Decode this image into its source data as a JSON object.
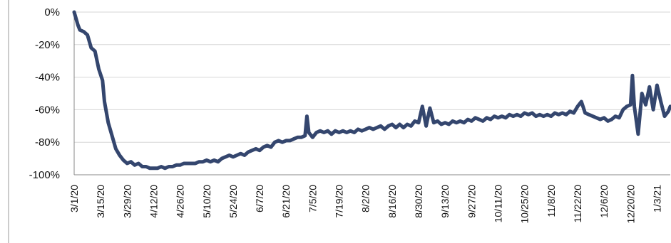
{
  "chart_data": {
    "type": "line",
    "title": "",
    "xlabel": "",
    "ylabel": "",
    "ylim": [
      -100,
      0
    ],
    "y_tick_values": [
      0,
      -20,
      -40,
      -60,
      -80,
      -100
    ],
    "y_tick_labels": [
      "0%",
      "-20%",
      "-40%",
      "-60%",
      "-80%",
      "-100%"
    ],
    "x_tick_labels": [
      "3/1/20",
      "3/15/20",
      "3/29/20",
      "4/12/20",
      "4/26/20",
      "5/10/20",
      "5/24/20",
      "6/7/20",
      "6/21/20",
      "7/5/20",
      "7/19/20",
      "8/2/20",
      "8/16/20",
      "8/30/20",
      "9/13/20",
      "9/27/20",
      "10/11/20",
      "10/25/20",
      "11/8/20",
      "11/22/20",
      "12/6/20",
      "12/20/20",
      "1/3/21"
    ],
    "x_start": "3/1/20",
    "x_end": "1/10/21",
    "grid": "horizontal",
    "legend": "none",
    "line_color": "#34466e",
    "series": [
      {
        "points": [
          [
            "3/1/20",
            0
          ],
          [
            "3/3/20",
            -8
          ],
          [
            "3/4/20",
            -11
          ],
          [
            "3/6/20",
            -12
          ],
          [
            "3/8/20",
            -14
          ],
          [
            "3/10/20",
            -22
          ],
          [
            "3/12/20",
            -24
          ],
          [
            "3/14/20",
            -35
          ],
          [
            "3/16/20",
            -42
          ],
          [
            "3/17/20",
            -55
          ],
          [
            "3/19/20",
            -68
          ],
          [
            "3/21/20",
            -76
          ],
          [
            "3/23/20",
            -84
          ],
          [
            "3/25/20",
            -88
          ],
          [
            "3/27/20",
            -91
          ],
          [
            "3/29/20",
            -93
          ],
          [
            "3/31/20",
            -92
          ],
          [
            "4/2/20",
            -94
          ],
          [
            "4/4/20",
            -93
          ],
          [
            "4/6/20",
            -95
          ],
          [
            "4/8/20",
            -95
          ],
          [
            "4/10/20",
            -96
          ],
          [
            "4/12/20",
            -96
          ],
          [
            "4/14/20",
            -96
          ],
          [
            "4/16/20",
            -95
          ],
          [
            "4/18/20",
            -96
          ],
          [
            "4/20/20",
            -95
          ],
          [
            "4/22/20",
            -95
          ],
          [
            "4/24/20",
            -94
          ],
          [
            "4/26/20",
            -94
          ],
          [
            "4/28/20",
            -93
          ],
          [
            "4/30/20",
            -93
          ],
          [
            "5/2/20",
            -93
          ],
          [
            "5/4/20",
            -93
          ],
          [
            "5/6/20",
            -92
          ],
          [
            "5/8/20",
            -92
          ],
          [
            "5/10/20",
            -91
          ],
          [
            "5/12/20",
            -92
          ],
          [
            "5/14/20",
            -91
          ],
          [
            "5/16/20",
            -92
          ],
          [
            "5/18/20",
            -90
          ],
          [
            "5/20/20",
            -89
          ],
          [
            "5/22/20",
            -88
          ],
          [
            "5/24/20",
            -89
          ],
          [
            "5/26/20",
            -88
          ],
          [
            "5/28/20",
            -87
          ],
          [
            "5/30/20",
            -88
          ],
          [
            "6/1/20",
            -86
          ],
          [
            "6/3/20",
            -85
          ],
          [
            "6/5/20",
            -84
          ],
          [
            "6/7/20",
            -85
          ],
          [
            "6/9/20",
            -83
          ],
          [
            "6/11/20",
            -82
          ],
          [
            "6/13/20",
            -83
          ],
          [
            "6/15/20",
            -80
          ],
          [
            "6/17/20",
            -79
          ],
          [
            "6/19/20",
            -80
          ],
          [
            "6/21/20",
            -79
          ],
          [
            "6/23/20",
            -79
          ],
          [
            "6/25/20",
            -78
          ],
          [
            "6/27/20",
            -77
          ],
          [
            "6/29/20",
            -77
          ],
          [
            "7/1/20",
            -76
          ],
          [
            "7/2/20",
            -64
          ],
          [
            "7/3/20",
            -74
          ],
          [
            "7/5/20",
            -77
          ],
          [
            "7/7/20",
            -74
          ],
          [
            "7/9/20",
            -73
          ],
          [
            "7/11/20",
            -74
          ],
          [
            "7/13/20",
            -73
          ],
          [
            "7/15/20",
            -75
          ],
          [
            "7/17/20",
            -73
          ],
          [
            "7/19/20",
            -74
          ],
          [
            "7/21/20",
            -73
          ],
          [
            "7/23/20",
            -74
          ],
          [
            "7/25/20",
            -73
          ],
          [
            "7/27/20",
            -74
          ],
          [
            "7/29/20",
            -72
          ],
          [
            "7/31/20",
            -73
          ],
          [
            "8/2/20",
            -72
          ],
          [
            "8/4/20",
            -71
          ],
          [
            "8/6/20",
            -72
          ],
          [
            "8/8/20",
            -71
          ],
          [
            "8/10/20",
            -70
          ],
          [
            "8/12/20",
            -72
          ],
          [
            "8/14/20",
            -70
          ],
          [
            "8/16/20",
            -69
          ],
          [
            "8/18/20",
            -71
          ],
          [
            "8/20/20",
            -69
          ],
          [
            "8/22/20",
            -71
          ],
          [
            "8/24/20",
            -69
          ],
          [
            "8/26/20",
            -70
          ],
          [
            "8/28/20",
            -67
          ],
          [
            "8/30/20",
            -68
          ],
          [
            "9/1/20",
            -58
          ],
          [
            "9/3/20",
            -70
          ],
          [
            "9/5/20",
            -59
          ],
          [
            "9/7/20",
            -68
          ],
          [
            "9/9/20",
            -67
          ],
          [
            "9/11/20",
            -69
          ],
          [
            "9/13/20",
            -68
          ],
          [
            "9/15/20",
            -69
          ],
          [
            "9/17/20",
            -67
          ],
          [
            "9/19/20",
            -68
          ],
          [
            "9/21/20",
            -67
          ],
          [
            "9/23/20",
            -68
          ],
          [
            "9/25/20",
            -66
          ],
          [
            "9/27/20",
            -67
          ],
          [
            "9/29/20",
            -65
          ],
          [
            "10/1/20",
            -66
          ],
          [
            "10/3/20",
            -67
          ],
          [
            "10/5/20",
            -65
          ],
          [
            "10/7/20",
            -66
          ],
          [
            "10/9/20",
            -64
          ],
          [
            "10/11/20",
            -65
          ],
          [
            "10/13/20",
            -64
          ],
          [
            "10/15/20",
            -65
          ],
          [
            "10/17/20",
            -63
          ],
          [
            "10/19/20",
            -64
          ],
          [
            "10/21/20",
            -63
          ],
          [
            "10/23/20",
            -64
          ],
          [
            "10/25/20",
            -62
          ],
          [
            "10/27/20",
            -63
          ],
          [
            "10/29/20",
            -62
          ],
          [
            "10/31/20",
            -64
          ],
          [
            "11/2/20",
            -63
          ],
          [
            "11/4/20",
            -64
          ],
          [
            "11/6/20",
            -63
          ],
          [
            "11/8/20",
            -64
          ],
          [
            "11/10/20",
            -62
          ],
          [
            "11/12/20",
            -63
          ],
          [
            "11/14/20",
            -62
          ],
          [
            "11/16/20",
            -63
          ],
          [
            "11/18/20",
            -61
          ],
          [
            "11/20/20",
            -62
          ],
          [
            "11/22/20",
            -58
          ],
          [
            "11/24/20",
            -55
          ],
          [
            "11/26/20",
            -62
          ],
          [
            "11/28/20",
            -63
          ],
          [
            "11/30/20",
            -64
          ],
          [
            "12/2/20",
            -65
          ],
          [
            "12/4/20",
            -66
          ],
          [
            "12/6/20",
            -65
          ],
          [
            "12/8/20",
            -67
          ],
          [
            "12/10/20",
            -66
          ],
          [
            "12/12/20",
            -64
          ],
          [
            "12/14/20",
            -65
          ],
          [
            "12/16/20",
            -60
          ],
          [
            "12/18/20",
            -58
          ],
          [
            "12/20/20",
            -57
          ],
          [
            "12/21/20",
            -39
          ],
          [
            "12/22/20",
            -58
          ],
          [
            "12/24/20",
            -75
          ],
          [
            "12/26/20",
            -50
          ],
          [
            "12/28/20",
            -57
          ],
          [
            "12/30/20",
            -46
          ],
          [
            "1/1/21",
            -60
          ],
          [
            "1/3/21",
            -45
          ],
          [
            "1/5/21",
            -55
          ],
          [
            "1/7/21",
            -64
          ],
          [
            "1/9/21",
            -61
          ],
          [
            "1/10/21",
            -58
          ]
        ]
      }
    ]
  }
}
